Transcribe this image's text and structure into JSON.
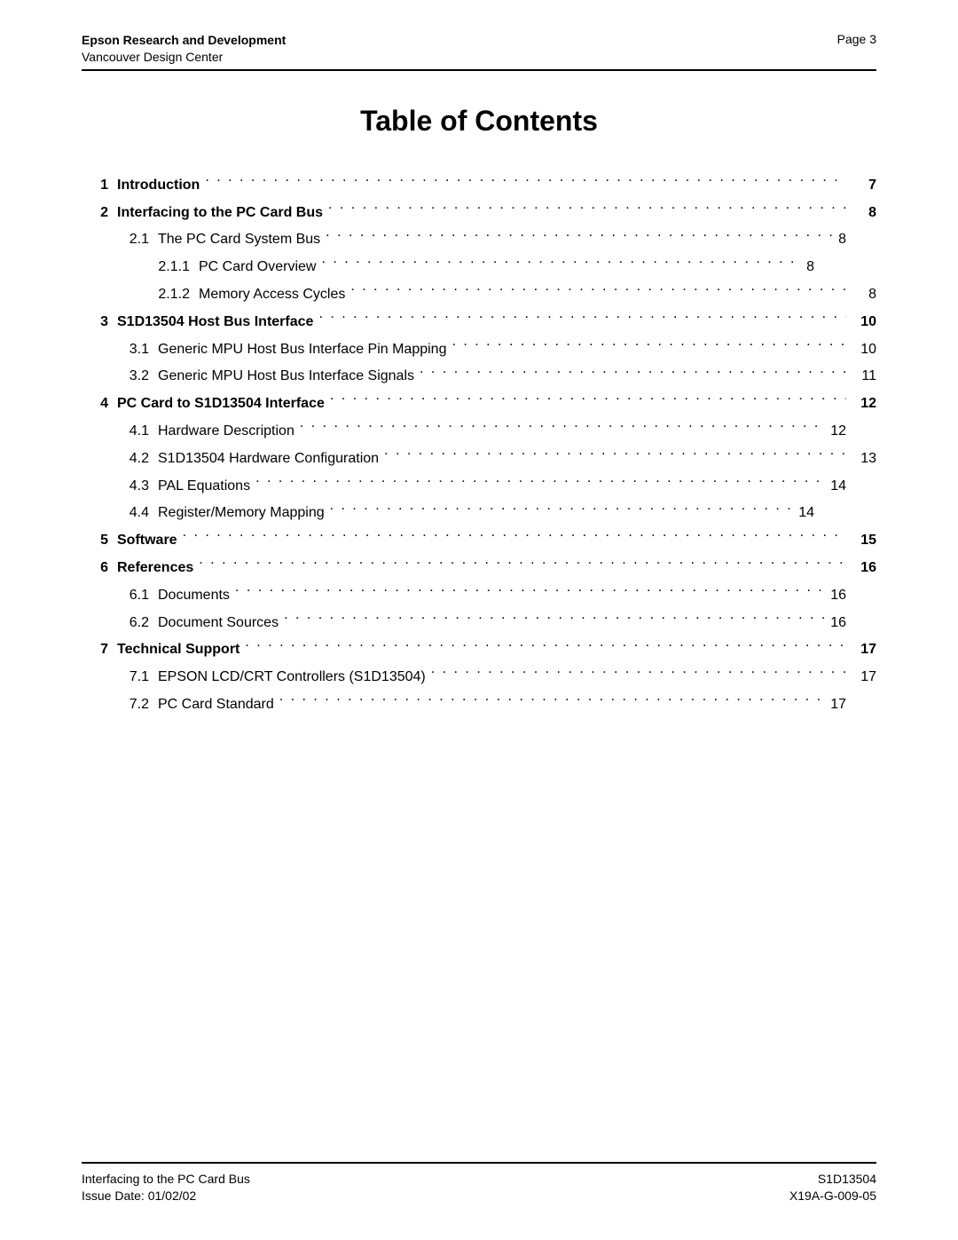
{
  "colors": {
    "text": "#000000",
    "background": "#ffffff",
    "rule": "#000000"
  },
  "typography": {
    "body_fontsize_pt": 12,
    "title_fontsize_pt": 24,
    "header_fontsize_pt": 10
  },
  "header": {
    "org": "Epson Research and Development",
    "dept": "Vancouver Design Center",
    "page_label": "Page 3"
  },
  "title": "Table of Contents",
  "toc": [
    {
      "level": 1,
      "num": "1",
      "label": "Introduction",
      "page": "7",
      "bold": true
    },
    {
      "level": 1,
      "num": "2",
      "label": "Interfacing to the PC Card Bus",
      "page": "8",
      "bold": true
    },
    {
      "level": 2,
      "num": "2.1",
      "label": "The PC Card System Bus",
      "page": "8",
      "bold": false,
      "pad": 1
    },
    {
      "level": 3,
      "num": "2.1.1",
      "label": "PC Card Overview",
      "page": "8",
      "bold": false,
      "pad": 2
    },
    {
      "level": 3,
      "num": "2.1.2",
      "label": "Memory Access Cycles",
      "page": "8",
      "bold": false
    },
    {
      "level": 1,
      "num": "3",
      "label": "S1D13504 Host Bus Interface",
      "page": "10",
      "bold": true
    },
    {
      "level": 2,
      "num": "3.1",
      "label": "Generic MPU Host Bus Interface Pin Mapping",
      "page": "10",
      "bold": false
    },
    {
      "level": 2,
      "num": "3.2",
      "label": "Generic MPU Host Bus Interface Signals",
      "page": "11",
      "bold": false
    },
    {
      "level": 1,
      "num": "4",
      "label": "PC Card to S1D13504 Interface",
      "page": "12",
      "bold": true
    },
    {
      "level": 2,
      "num": "4.1",
      "label": "Hardware Description",
      "page": "12",
      "bold": false,
      "pad": 1
    },
    {
      "level": 2,
      "num": "4.2",
      "label": "S1D13504 Hardware Configuration",
      "page": "13",
      "bold": false
    },
    {
      "level": 2,
      "num": "4.3",
      "label": "PAL Equations",
      "page": "14",
      "bold": false,
      "pad": 1
    },
    {
      "level": 2,
      "num": "4.4",
      "label": "Register/Memory Mapping",
      "page": "14",
      "bold": false,
      "pad": 2
    },
    {
      "level": 1,
      "num": "5",
      "label": "Software",
      "page": "15",
      "bold": true
    },
    {
      "level": 1,
      "num": "6",
      "label": "References",
      "page": "16",
      "bold": true
    },
    {
      "level": 2,
      "num": "6.1",
      "label": "Documents",
      "page": "16",
      "bold": false,
      "pad": 1
    },
    {
      "level": 2,
      "num": "6.2",
      "label": "Document Sources",
      "page": "16",
      "bold": false,
      "pad": 1
    },
    {
      "level": 1,
      "num": "7",
      "label": "Technical Support",
      "page": "17",
      "bold": true
    },
    {
      "level": 2,
      "num": "7.1",
      "label": "EPSON LCD/CRT Controllers (S1D13504)",
      "page": "17",
      "bold": false
    },
    {
      "level": 2,
      "num": "7.2",
      "label": "PC Card Standard",
      "page": "17",
      "bold": false,
      "pad": 1
    }
  ],
  "footer": {
    "left1": "Interfacing to the PC Card Bus",
    "left2": "Issue Date: 01/02/02",
    "right1": "S1D13504",
    "right2": "X19A-G-009-05"
  }
}
